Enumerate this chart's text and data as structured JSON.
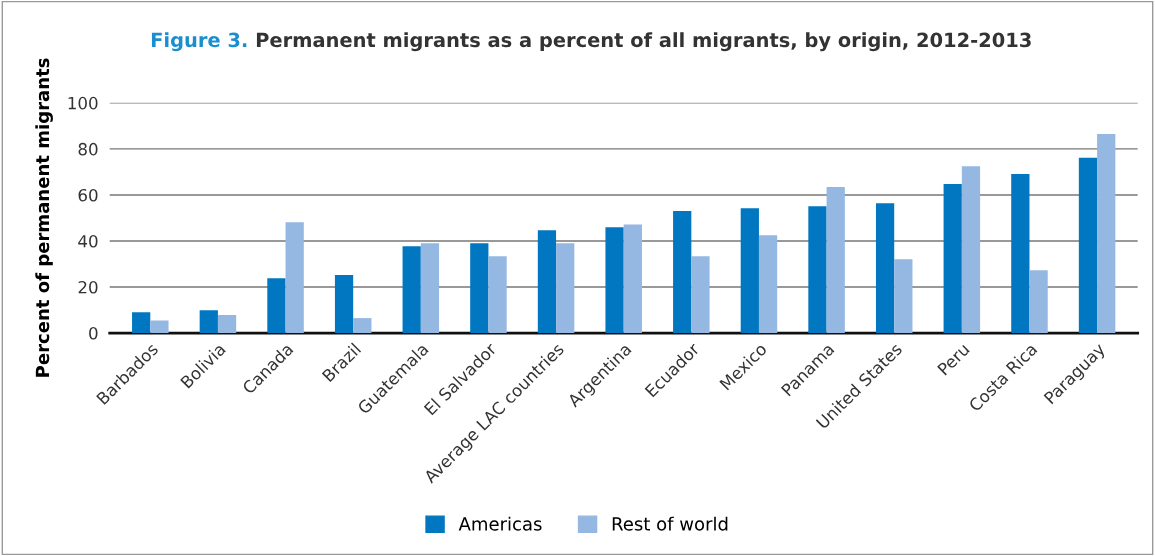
{
  "chart_data": {
    "type": "bar",
    "title": "Figure 3. Permanent migrants as a percent of all migrants, by origin, 2012-2013",
    "ylabel": "Percent of permanent migrants",
    "categories": [
      "Barbados",
      "Bolivia",
      "Canada",
      "Brazil",
      "Guatemala",
      "El Salvador",
      "Average LAC countries",
      "Argentina",
      "Ecuador",
      "Mexico",
      "Panama",
      "United States",
      "Peru",
      "Costa Rica",
      "Paraguay"
    ],
    "series": [
      {
        "name": "Americas",
        "color": "#0077c0",
        "values": [
          9.0,
          9.9,
          23.8,
          25.2,
          37.7,
          39.0,
          44.7,
          46.0,
          53.0,
          54.2,
          55.1,
          56.4,
          64.8,
          69.1,
          76.1
        ]
      },
      {
        "name": "Rest of world",
        "color": "#95b8e2",
        "values": [
          5.4,
          7.8,
          48.1,
          6.5,
          39.0,
          33.4,
          39.0,
          47.2,
          33.4,
          42.5,
          63.4,
          32.1,
          72.5,
          27.3,
          86.5
        ]
      }
    ],
    "ylim": [
      0,
      100
    ],
    "yticks": [
      0,
      20,
      40,
      60,
      80,
      100
    ],
    "grid": "y",
    "legend": "bottom"
  }
}
